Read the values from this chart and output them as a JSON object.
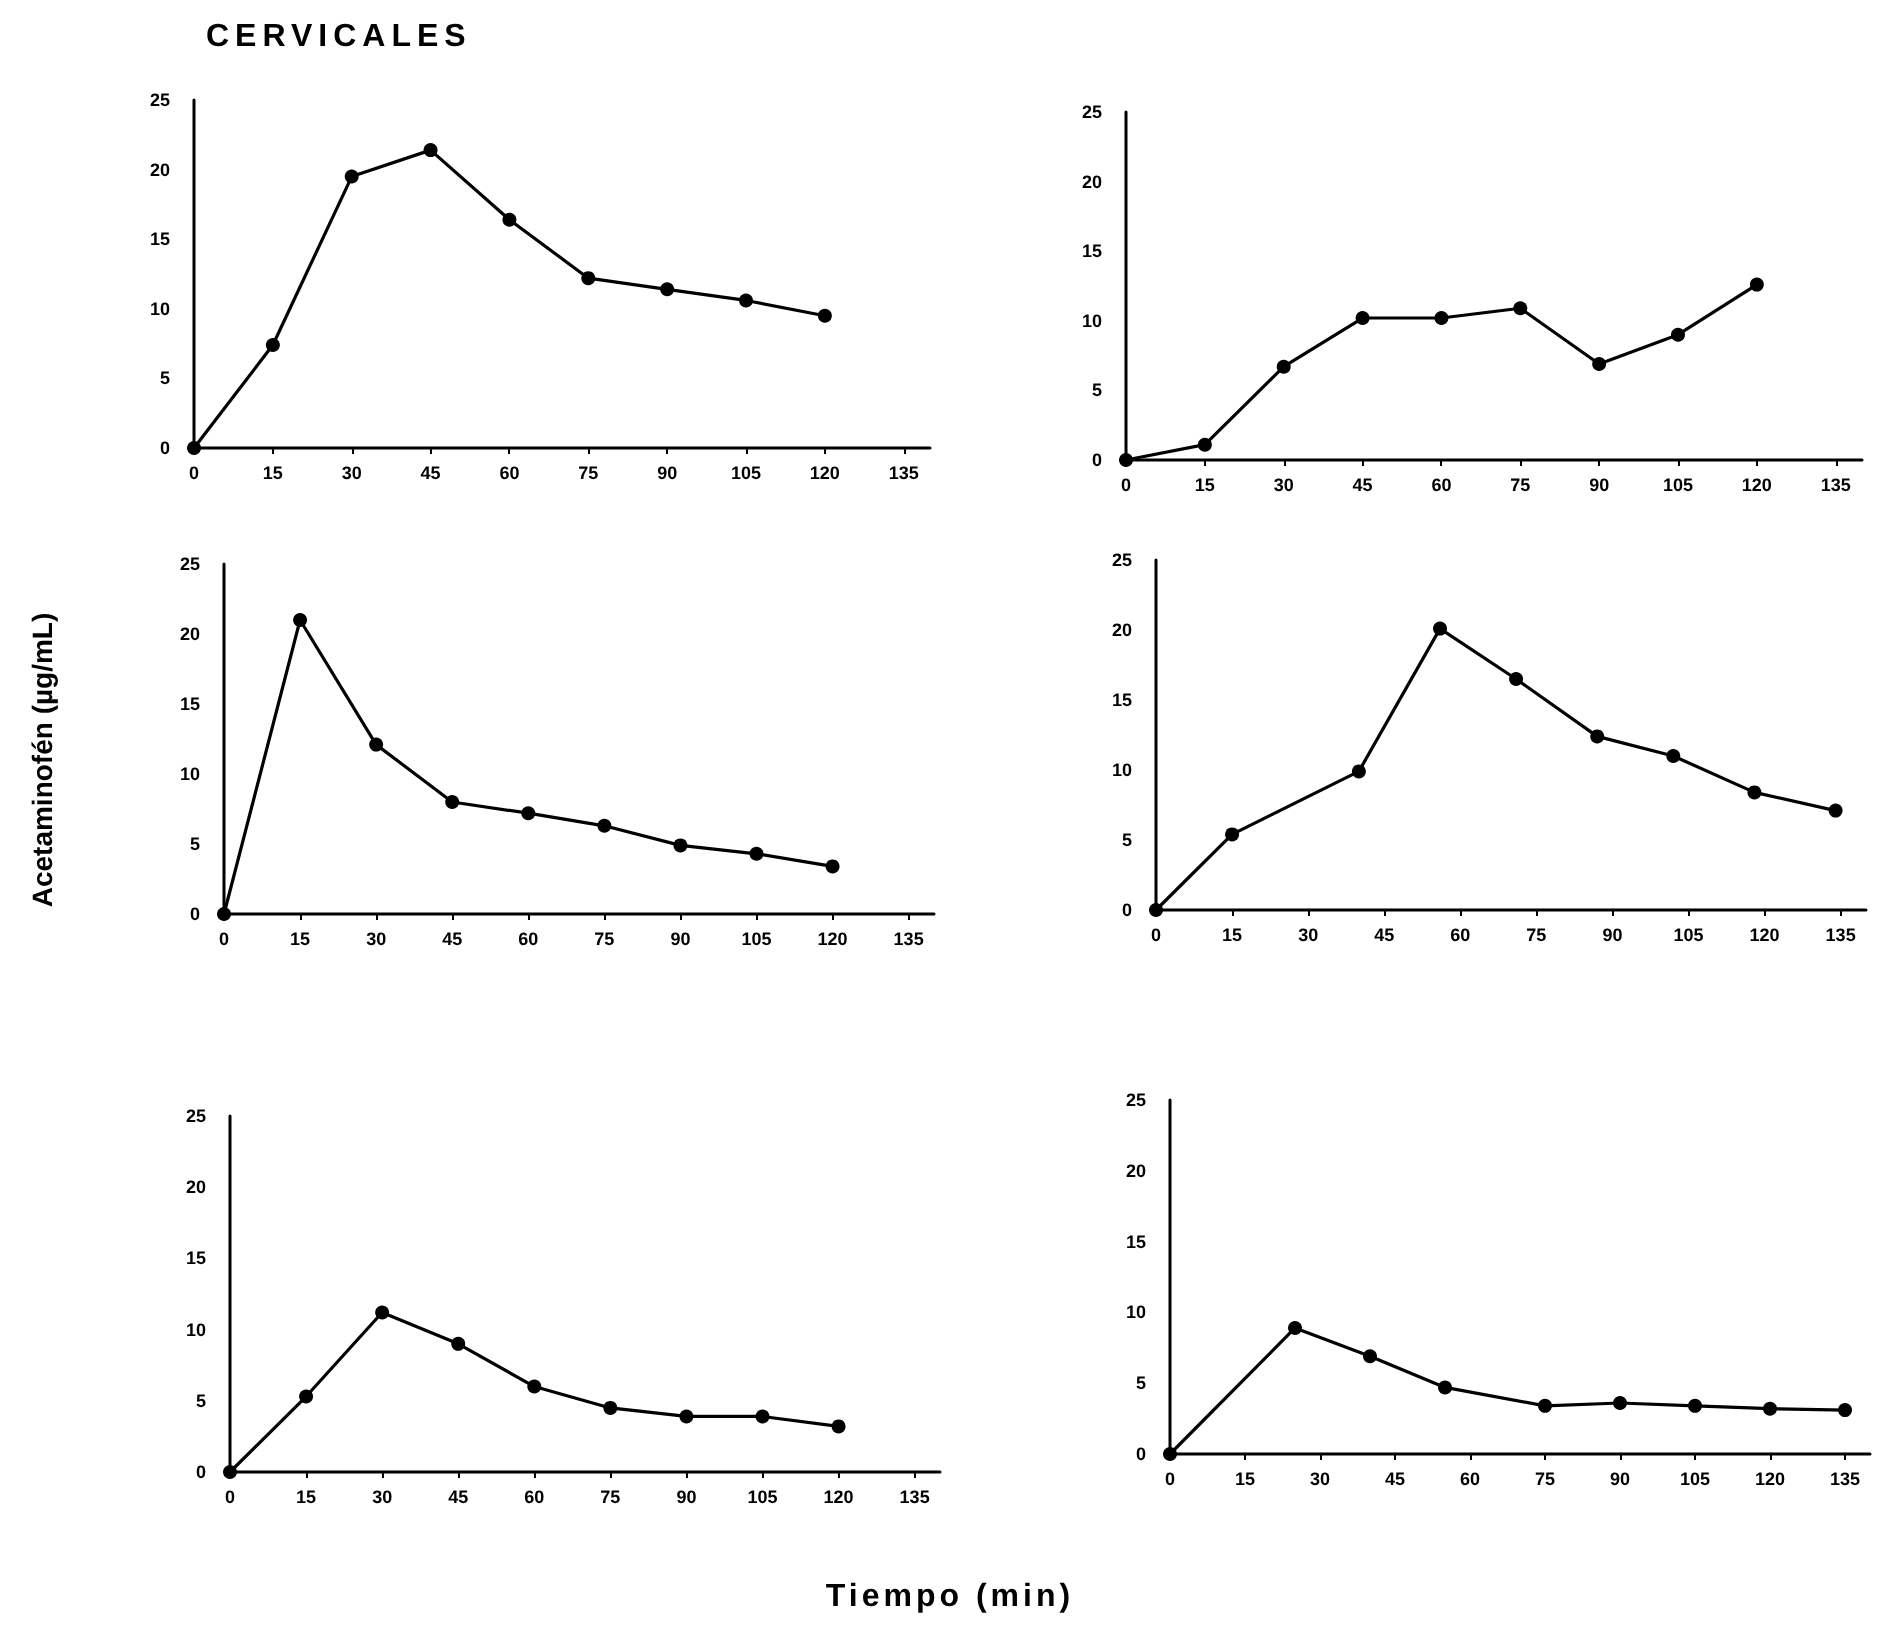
{
  "chart_data": [
    {
      "type": "line",
      "title": "CERVICALES",
      "x": [
        0,
        15,
        30,
        45,
        60,
        75,
        90,
        105,
        120
      ],
      "series": [
        {
          "color": "#000000",
          "values": [
            0,
            7.4,
            19.5,
            21.4,
            16.4,
            12.2,
            11.4,
            10.6,
            9.5
          ]
        }
      ],
      "xlim": [
        0,
        140
      ],
      "xticks": [
        0,
        15,
        30,
        45,
        60,
        75,
        90,
        105,
        120,
        135
      ],
      "ylim": [
        0,
        25
      ],
      "yticks": [
        0,
        5,
        10,
        15,
        20,
        25
      ],
      "marker": "circle",
      "line_style": "solid"
    },
    {
      "type": "line",
      "x": [
        0,
        15,
        30,
        45,
        60,
        75,
        90,
        105,
        120
      ],
      "series": [
        {
          "color": "#000000",
          "values": [
            0,
            1.1,
            6.7,
            10.2,
            10.2,
            10.9,
            6.9,
            9,
            12.6
          ]
        }
      ],
      "xlim": [
        0,
        140
      ],
      "xticks": [
        0,
        15,
        30,
        45,
        60,
        75,
        90,
        105,
        120,
        135
      ],
      "ylim": [
        0,
        25
      ],
      "yticks": [
        0,
        5,
        10,
        15,
        20,
        25
      ],
      "marker": "circle",
      "line_style": "solid"
    },
    {
      "type": "line",
      "ylabel": "Acetaminofén (µg/mL)",
      "x": [
        0,
        15,
        30,
        45,
        60,
        75,
        90,
        105,
        120
      ],
      "series": [
        {
          "color": "#000000",
          "values": [
            0,
            21,
            12.1,
            8,
            7.2,
            6.3,
            4.9,
            4.3,
            3.4
          ]
        }
      ],
      "xlim": [
        0,
        140
      ],
      "xticks": [
        0,
        15,
        30,
        45,
        60,
        75,
        90,
        105,
        120,
        135
      ],
      "ylim": [
        0,
        25
      ],
      "yticks": [
        0,
        5,
        10,
        15,
        20,
        25
      ],
      "marker": "circle",
      "line_style": "solid"
    },
    {
      "type": "line",
      "x": [
        0,
        15,
        40,
        56,
        71,
        87,
        102,
        118,
        134
      ],
      "series": [
        {
          "color": "#000000",
          "values": [
            0,
            5.4,
            9.9,
            20.1,
            16.5,
            12.4,
            11,
            8.4,
            7.1
          ]
        }
      ],
      "xlim": [
        0,
        140
      ],
      "xticks": [
        0,
        15,
        30,
        45,
        60,
        75,
        90,
        105,
        120,
        135
      ],
      "ylim": [
        0,
        25
      ],
      "yticks": [
        0,
        5,
        10,
        15,
        20,
        25
      ],
      "marker": "circle",
      "line_style": "solid"
    },
    {
      "type": "line",
      "xlabel": "Tiempo (min)",
      "x": [
        0,
        15,
        30,
        45,
        60,
        75,
        90,
        105,
        120
      ],
      "series": [
        {
          "color": "#000000",
          "values": [
            0,
            5.3,
            11.2,
            9,
            6,
            4.5,
            3.9,
            3.9,
            3.2
          ]
        }
      ],
      "xlim": [
        0,
        140
      ],
      "xticks": [
        0,
        15,
        30,
        45,
        60,
        75,
        90,
        105,
        120,
        135
      ],
      "ylim": [
        0,
        25
      ],
      "yticks": [
        0,
        5,
        10,
        15,
        20,
        25
      ],
      "marker": "circle",
      "line_style": "solid"
    },
    {
      "type": "line",
      "x": [
        0,
        25,
        40,
        55,
        75,
        90,
        105,
        120,
        135
      ],
      "series": [
        {
          "color": "#000000",
          "values": [
            0,
            8.9,
            6.9,
            4.7,
            3.4,
            3.6,
            3.4,
            3.2,
            3.1
          ]
        }
      ],
      "xlim": [
        0,
        140
      ],
      "xticks": [
        0,
        15,
        30,
        45,
        60,
        75,
        90,
        105,
        120,
        135
      ],
      "ylim": [
        0,
        25
      ],
      "yticks": [
        0,
        5,
        10,
        15,
        20,
        25
      ],
      "marker": "circle",
      "line_style": "solid"
    }
  ]
}
